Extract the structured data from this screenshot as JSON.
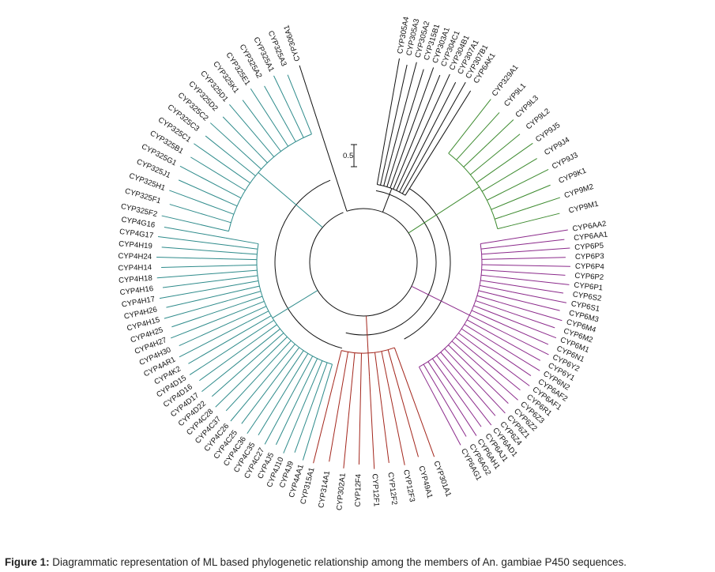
{
  "figure": {
    "caption_label": "Figure 1:",
    "caption_text": " Diagrammatic representation of ML based phylogenetic relationship among the members of An. gambiae P450 sequences."
  },
  "scale_bar": {
    "label": "0.5"
  },
  "colors": {
    "teal": "#2e8b8b",
    "green": "#3c8a2e",
    "purple": "#8b2a8b",
    "red": "#a3261c",
    "black": "#111111"
  },
  "clades": [
    {
      "id": "root-outgroup",
      "color": "black",
      "taxa": [
        "CYP306A1"
      ]
    },
    {
      "id": "mito",
      "color": "black",
      "taxa": [
        "CYP305A4",
        "CYP305A3",
        "CYP305A2",
        "CYP315B1",
        "CYP303A1",
        "CYP304C1",
        "CYP304B1",
        "CYP307A1",
        "CYP307B1",
        "CYP6AK1"
      ]
    },
    {
      "id": "cyp9",
      "color": "green",
      "taxa": [
        "CYP329A1",
        "CYP9L1",
        "CYP9L3",
        "CYP9L2",
        "CYP9J5",
        "CYP9J4",
        "CYP9J3",
        "CYP9K1",
        "CYP9M2",
        "CYP9M1"
      ]
    },
    {
      "id": "cyp6",
      "color": "purple",
      "taxa": [
        "CYP6AA2",
        "CYP6AA1",
        "CYP6P5",
        "CYP6P3",
        "CYP6P4",
        "CYP6P2",
        "CYP6P1",
        "CYP6S2",
        "CYP6S1",
        "CYP6M3",
        "CYP6M4",
        "CYP6M2",
        "CYP6M1",
        "CYP6N1",
        "CYP6Y2",
        "CYP6Y1",
        "CYP6N2",
        "CYP6AF2",
        "CYP6AF1",
        "CYP6R1",
        "CYP6Z3",
        "CYP6Z2",
        "CYP6Z1",
        "CYP6Z4",
        "CYP6AD1",
        "CYP6AJ1",
        "CYP6AH1",
        "CYP6AG2",
        "CYP6AG1"
      ]
    },
    {
      "id": "mito2",
      "color": "red",
      "taxa": [
        "CYP301A1",
        "CYP49A1",
        "CYP12F3",
        "CYP12F2",
        "CYP12F1",
        "CYP12F4",
        "CYP302A1",
        "CYP314A1",
        "CYP315A1"
      ]
    },
    {
      "id": "cyp4",
      "color": "teal",
      "taxa": [
        "CYP4AA1",
        "CYP4J9",
        "CYP4J10",
        "CYP4J5",
        "CYP4C27",
        "CYP4C35",
        "CYP4C36",
        "CYP4C25",
        "CYP4C26",
        "CYP4C37",
        "CYP4C28",
        "CYP4D22",
        "CYP4D17",
        "CYP4D16",
        "CYP4D15",
        "CYP4K2",
        "CYP4AR1",
        "CYP4H30",
        "CYP4H27",
        "CYP4H25",
        "CYP4H15",
        "CYP4H26",
        "CYP4H17",
        "CYP4H16",
        "CYP4H18",
        "CYP4H14",
        "CYP4H24",
        "CYP4H19",
        "CYP4G17",
        "CYP4G16"
      ]
    },
    {
      "id": "cyp325",
      "color": "teal",
      "taxa": [
        "CYP325F2",
        "CYP325F1",
        "CYP325H1",
        "CYP325J1",
        "CYP325G1",
        "CYP325B1",
        "CYP325C1",
        "CYP325C3",
        "CYP325C2",
        "CYP325D2",
        "CYP325D1",
        "CYP325K1",
        "CYP325E1",
        "CYP325A2",
        "CYP325A1",
        "CYP325A3"
      ]
    }
  ]
}
